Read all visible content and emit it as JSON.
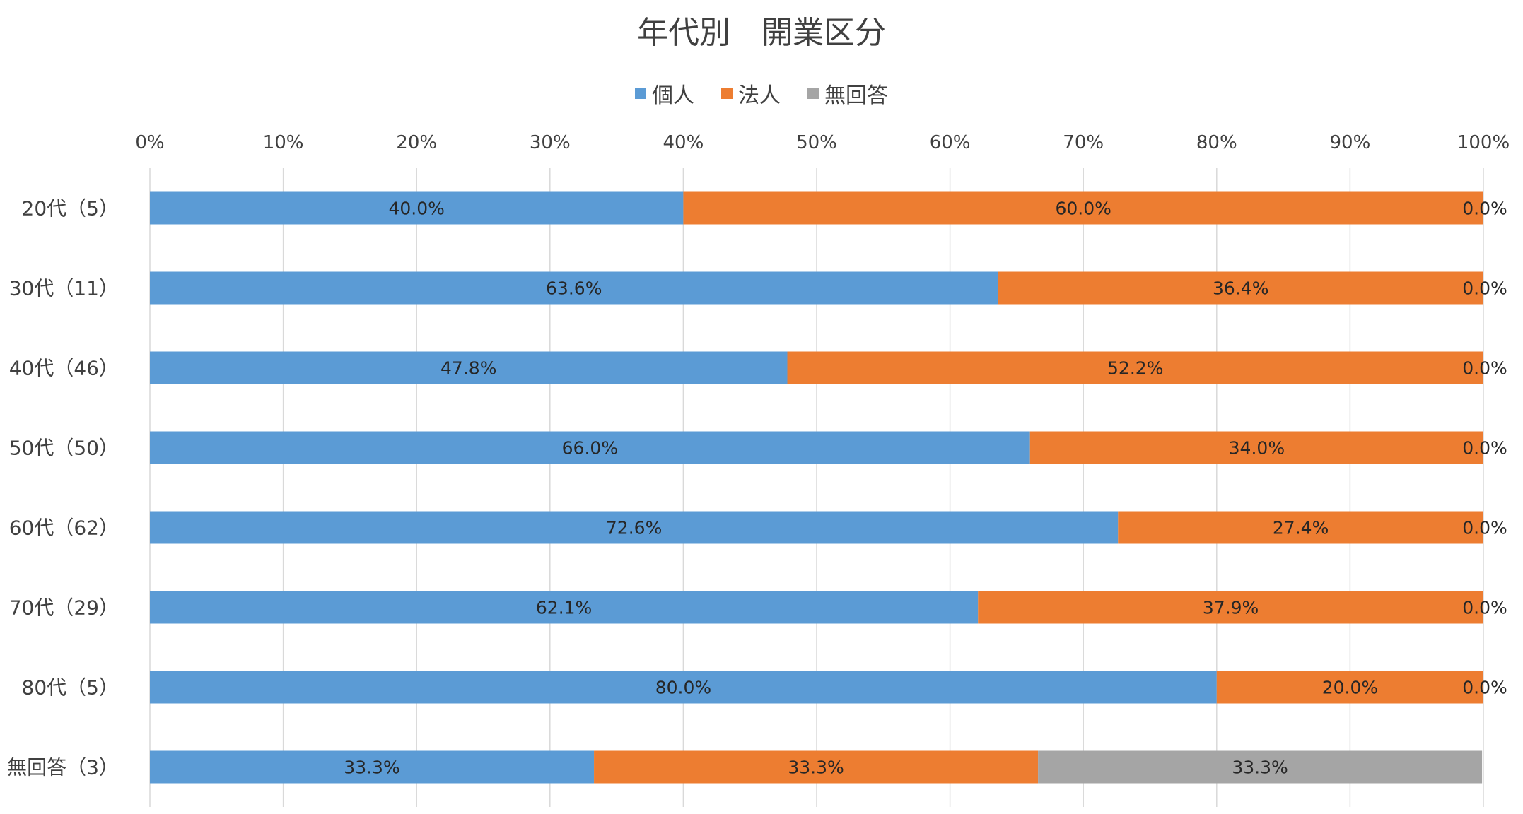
{
  "chart_data": {
    "type": "bar",
    "orientation": "horizontal",
    "stacked": "percent",
    "title": "年代別　開業区分",
    "categories": [
      "20代（5）",
      "30代（11）",
      "40代（46）",
      "50代（50）",
      "60代（62）",
      "70代（29）",
      "80代（5）",
      "無回答（3）"
    ],
    "series": [
      {
        "name": "個人",
        "color": "#5B9BD5",
        "values": [
          40.0,
          63.6,
          47.8,
          66.0,
          72.6,
          62.1,
          80.0,
          33.3
        ],
        "labels": [
          "40.0%",
          "63.6%",
          "47.8%",
          "66.0%",
          "72.6%",
          "62.1%",
          "80.0%",
          "33.3%"
        ]
      },
      {
        "name": "法人",
        "color": "#ED7D31",
        "values": [
          60.0,
          36.4,
          52.2,
          34.0,
          27.4,
          37.9,
          20.0,
          33.3
        ],
        "labels": [
          "60.0%",
          "36.4%",
          "52.2%",
          "34.0%",
          "27.4%",
          "37.9%",
          "20.0%",
          "33.3%"
        ]
      },
      {
        "name": "無回答",
        "color": "#A5A5A5",
        "values": [
          0.0,
          0.0,
          0.0,
          0.0,
          0.0,
          0.0,
          0.0,
          33.3
        ],
        "labels": [
          "0.0%",
          "0.0%",
          "0.0%",
          "0.0%",
          "0.0%",
          "0.0%",
          "0.0%",
          "33.3%"
        ]
      }
    ],
    "xlim": [
      0,
      100
    ],
    "x_ticks": [
      "0%",
      "10%",
      "20%",
      "30%",
      "40%",
      "50%",
      "60%",
      "70%",
      "80%",
      "90%",
      "100%"
    ],
    "x_axis_position": "top",
    "grid": true,
    "legend_position": "top"
  }
}
